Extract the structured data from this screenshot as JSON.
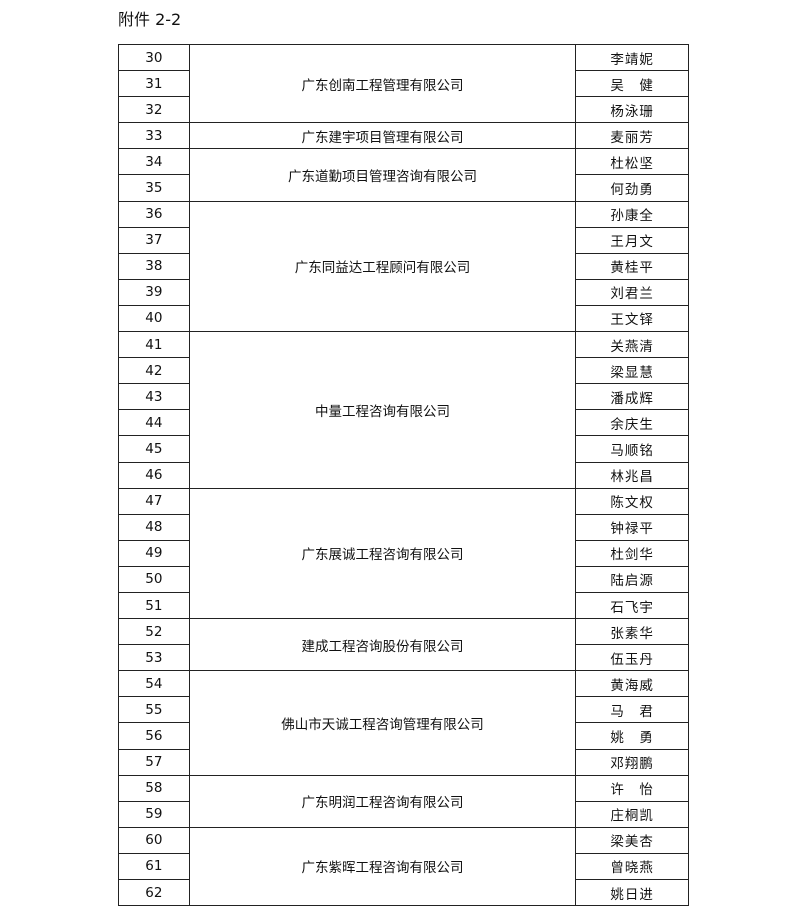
{
  "title": "附件 2-2",
  "groups": [
    {
      "company": "广东创南工程管理有限公司",
      "rows": [
        {
          "no": "30",
          "name": "李靖妮"
        },
        {
          "no": "31",
          "name": "吴　健"
        },
        {
          "no": "32",
          "name": "杨泳珊"
        }
      ]
    },
    {
      "company": "广东建宇项目管理有限公司",
      "rows": [
        {
          "no": "33",
          "name": "麦丽芳"
        }
      ]
    },
    {
      "company": "广东道勤项目管理咨询有限公司",
      "rows": [
        {
          "no": "34",
          "name": "杜松坚"
        },
        {
          "no": "35",
          "name": "何劲勇"
        }
      ]
    },
    {
      "company": "广东同益达工程顾问有限公司",
      "rows": [
        {
          "no": "36",
          "name": "孙康全"
        },
        {
          "no": "37",
          "name": "王月文"
        },
        {
          "no": "38",
          "name": "黄桂平"
        },
        {
          "no": "39",
          "name": "刘君兰"
        },
        {
          "no": "40",
          "name": "王文铎"
        }
      ]
    },
    {
      "company": "中量工程咨询有限公司",
      "rows": [
        {
          "no": "41",
          "name": "关燕清"
        },
        {
          "no": "42",
          "name": "梁显慧"
        },
        {
          "no": "43",
          "name": "潘成辉"
        },
        {
          "no": "44",
          "name": "余庆生"
        },
        {
          "no": "45",
          "name": "马顺铭"
        },
        {
          "no": "46",
          "name": "林兆昌"
        }
      ]
    },
    {
      "company": "广东展诚工程咨询有限公司",
      "rows": [
        {
          "no": "47",
          "name": "陈文权"
        },
        {
          "no": "48",
          "name": "钟禄平"
        },
        {
          "no": "49",
          "name": "杜剑华"
        },
        {
          "no": "50",
          "name": "陆启源"
        },
        {
          "no": "51",
          "name": "石飞宇"
        }
      ]
    },
    {
      "company": "建成工程咨询股份有限公司",
      "rows": [
        {
          "no": "52",
          "name": "张素华"
        },
        {
          "no": "53",
          "name": "伍玉丹"
        }
      ]
    },
    {
      "company": "佛山市天诚工程咨询管理有限公司",
      "rows": [
        {
          "no": "54",
          "name": "黄海威"
        },
        {
          "no": "55",
          "name": "马　君"
        },
        {
          "no": "56",
          "name": "姚　勇"
        },
        {
          "no": "57",
          "name": "邓翔鹏"
        }
      ]
    },
    {
      "company": "广东明润工程咨询有限公司",
      "rows": [
        {
          "no": "58",
          "name": "许　怡"
        },
        {
          "no": "59",
          "name": "庄桐凯"
        }
      ]
    },
    {
      "company": "广东紫晖工程咨询有限公司",
      "rows": [
        {
          "no": "60",
          "name": "梁美杏"
        },
        {
          "no": "61",
          "name": "曾晓燕"
        },
        {
          "no": "62",
          "name": "姚日进"
        }
      ]
    }
  ]
}
